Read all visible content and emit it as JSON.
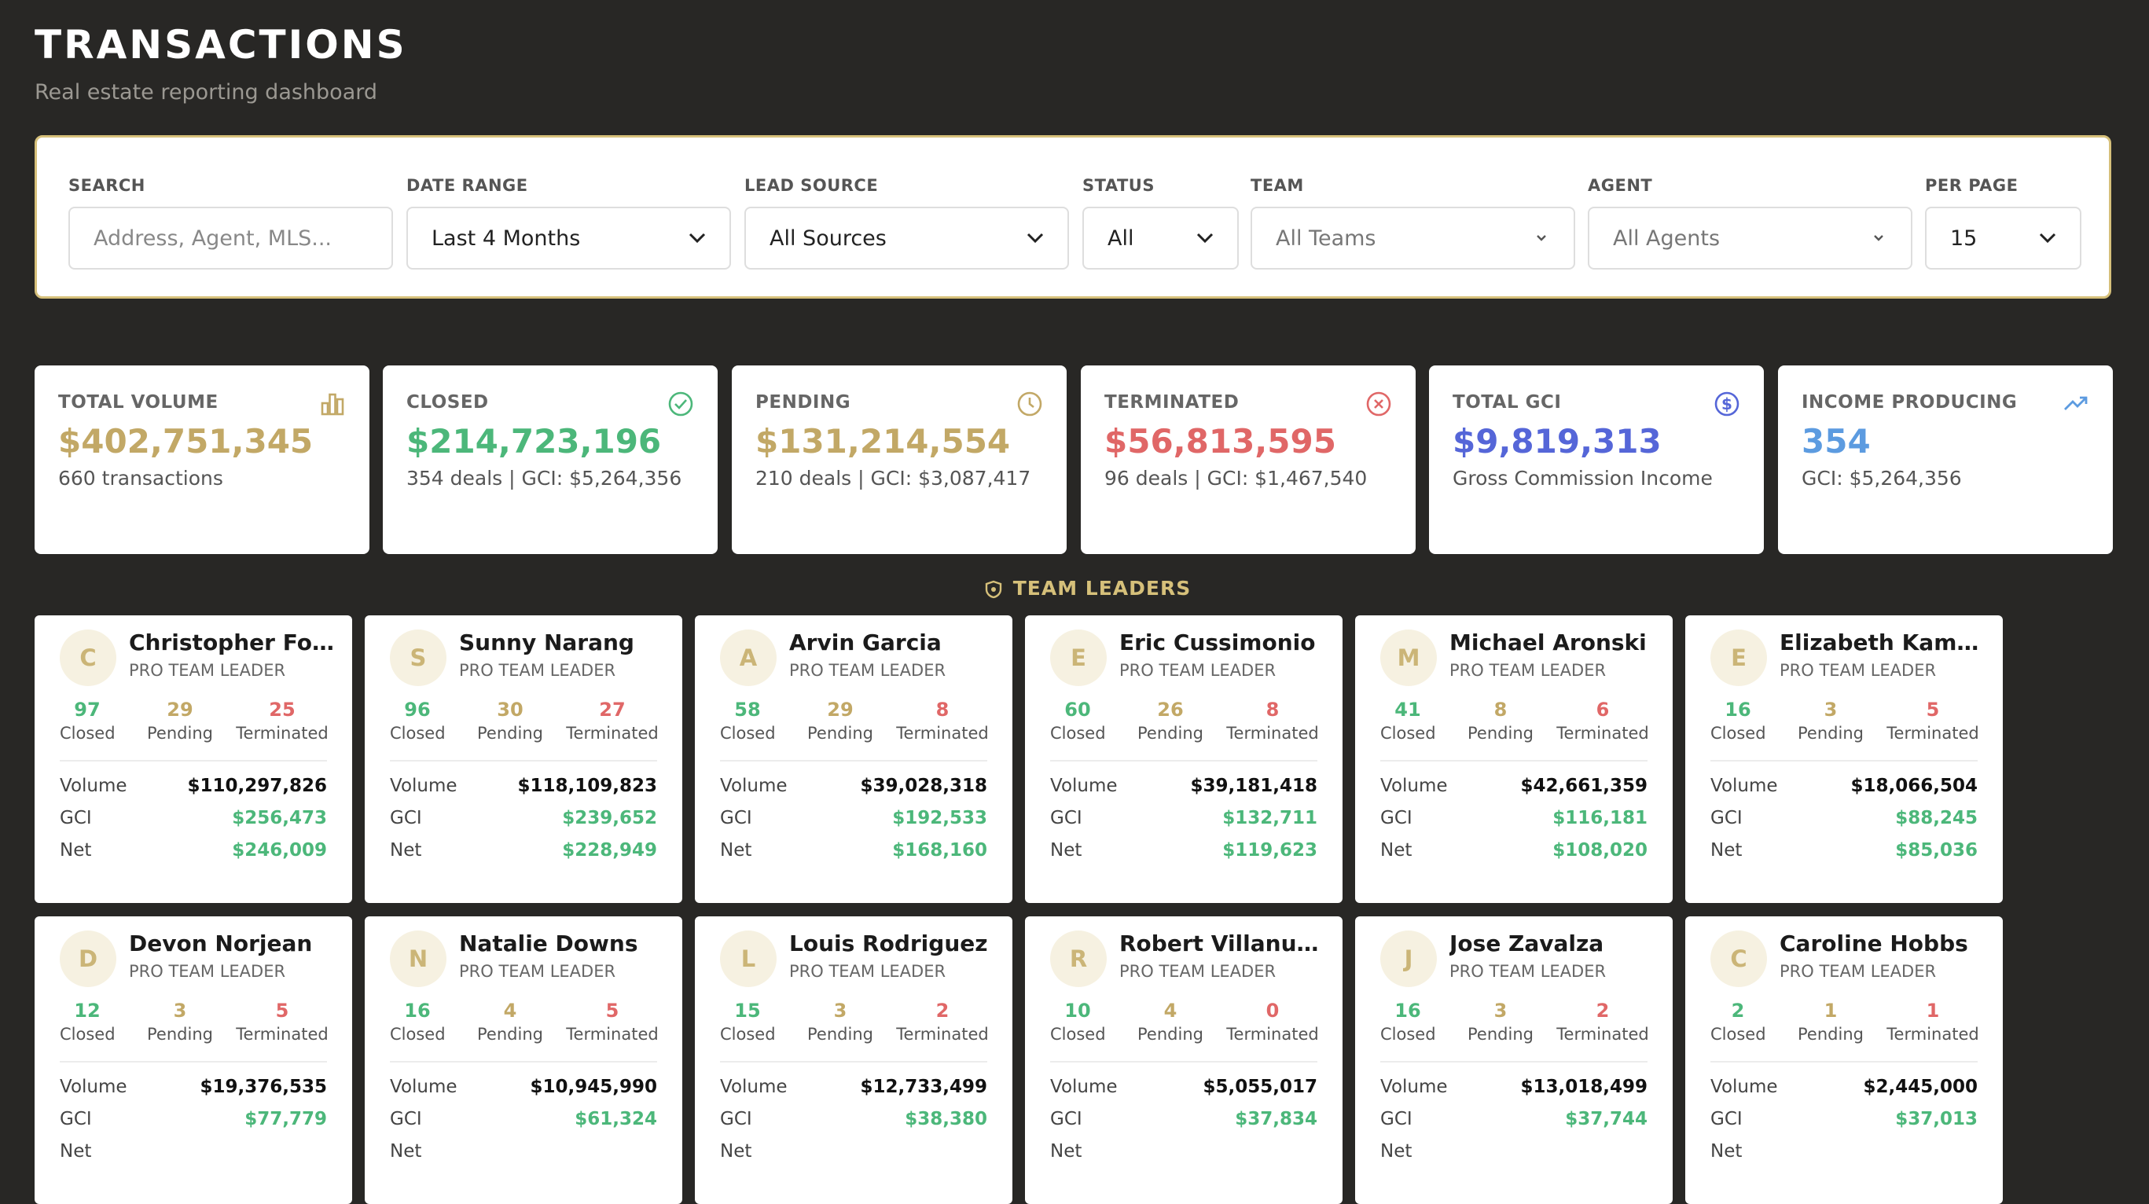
{
  "header": {
    "title": "TRANSACTIONS",
    "subtitle": "Real estate reporting dashboard"
  },
  "filters": {
    "search": {
      "label": "SEARCH",
      "placeholder": "Address, Agent, MLS..."
    },
    "date_range": {
      "label": "DATE RANGE",
      "value": "Last 4 Months"
    },
    "lead_source": {
      "label": "LEAD SOURCE",
      "value": "All Sources"
    },
    "status": {
      "label": "STATUS",
      "value": "All"
    },
    "team": {
      "label": "TEAM",
      "value": "All Teams"
    },
    "agent": {
      "label": "AGENT",
      "value": "All Agents"
    },
    "per_page": {
      "label": "PER PAGE",
      "value": "15"
    }
  },
  "stats": [
    {
      "label": "TOTAL VOLUME",
      "value": "$402,751,345",
      "sub": "660 transactions",
      "color": "#c2a866",
      "icon": "bar-chart-icon"
    },
    {
      "label": "CLOSED",
      "value": "$214,723,196",
      "sub": "354 deals | GCI: $5,264,356",
      "color": "#4cb77a",
      "icon": "check-circle-icon"
    },
    {
      "label": "PENDING",
      "value": "$131,214,554",
      "sub": "210 deals | GCI: $3,087,417",
      "color": "#c2a866",
      "icon": "clock-icon"
    },
    {
      "label": "TERMINATED",
      "value": "$56,813,595",
      "sub": "96 deals | GCI: $1,467,540",
      "color": "#e06767",
      "icon": "x-circle-icon"
    },
    {
      "label": "TOTAL GCI",
      "value": "$9,819,313",
      "sub": "Gross Commission Income",
      "color": "#5566d8",
      "icon": "dollar-circle-icon"
    },
    {
      "label": "INCOME PRODUCING",
      "value": "354",
      "sub": "GCI: $5,264,356",
      "color": "#5c9be0",
      "icon": "trending-up-icon"
    }
  ],
  "section": {
    "title": "TEAM LEADERS"
  },
  "leader_labels": {
    "role": "PRO TEAM LEADER",
    "closed": "Closed",
    "pending": "Pending",
    "terminated": "Terminated",
    "volume": "Volume",
    "gci": "GCI",
    "net": "Net"
  },
  "leaders": [
    {
      "initial": "C",
      "name": "Christopher Fordi...",
      "closed": "97",
      "pending": "29",
      "terminated": "25",
      "volume": "$110,297,826",
      "gci": "$256,473",
      "net": "$246,009"
    },
    {
      "initial": "S",
      "name": "Sunny Narang",
      "closed": "96",
      "pending": "30",
      "terminated": "27",
      "volume": "$118,109,823",
      "gci": "$239,652",
      "net": "$228,949"
    },
    {
      "initial": "A",
      "name": "Arvin Garcia",
      "closed": "58",
      "pending": "29",
      "terminated": "8",
      "volume": "$39,028,318",
      "gci": "$192,533",
      "net": "$168,160"
    },
    {
      "initial": "E",
      "name": "Eric Cussimonio",
      "closed": "60",
      "pending": "26",
      "terminated": "8",
      "volume": "$39,181,418",
      "gci": "$132,711",
      "net": "$119,623"
    },
    {
      "initial": "M",
      "name": "Michael Aronski",
      "closed": "41",
      "pending": "8",
      "terminated": "6",
      "volume": "$42,661,359",
      "gci": "$116,181",
      "net": "$108,020"
    },
    {
      "initial": "E",
      "name": "Elizabeth Kammen",
      "closed": "16",
      "pending": "3",
      "terminated": "5",
      "volume": "$18,066,504",
      "gci": "$88,245",
      "net": "$85,036"
    },
    {
      "initial": "D",
      "name": "Devon Norjean",
      "closed": "12",
      "pending": "3",
      "terminated": "5",
      "volume": "$19,376,535",
      "gci": "$77,779",
      "net": ""
    },
    {
      "initial": "N",
      "name": "Natalie Downs",
      "closed": "16",
      "pending": "4",
      "terminated": "5",
      "volume": "$10,945,990",
      "gci": "$61,324",
      "net": ""
    },
    {
      "initial": "L",
      "name": "Louis Rodriguez",
      "closed": "15",
      "pending": "3",
      "terminated": "2",
      "volume": "$12,733,499",
      "gci": "$38,380",
      "net": ""
    },
    {
      "initial": "R",
      "name": "Robert Villanueva",
      "closed": "10",
      "pending": "4",
      "terminated": "0",
      "volume": "$5,055,017",
      "gci": "$37,834",
      "net": ""
    },
    {
      "initial": "J",
      "name": "Jose Zavalza",
      "closed": "16",
      "pending": "3",
      "terminated": "2",
      "volume": "$13,018,499",
      "gci": "$37,744",
      "net": ""
    },
    {
      "initial": "C",
      "name": "Caroline Hobbs",
      "closed": "2",
      "pending": "1",
      "terminated": "1",
      "volume": "$2,445,000",
      "gci": "$37,013",
      "net": ""
    }
  ]
}
